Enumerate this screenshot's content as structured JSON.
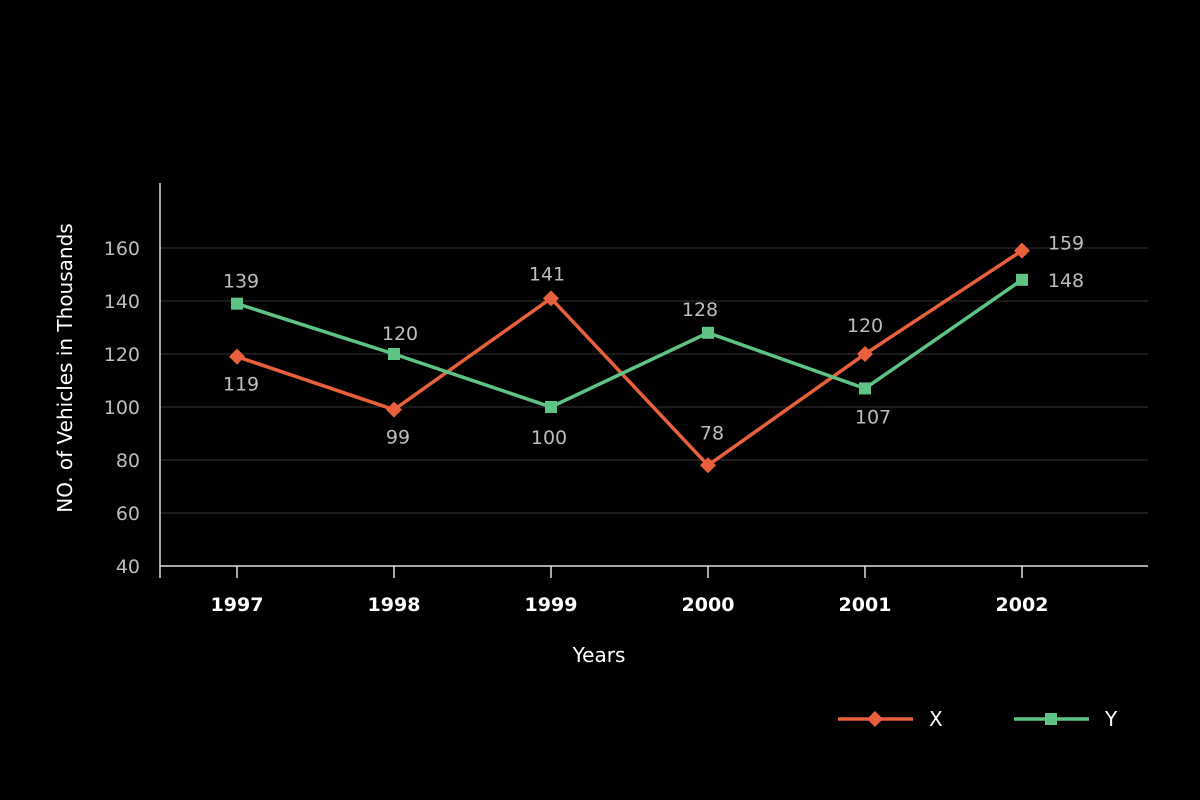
{
  "chart_data": {
    "type": "line",
    "title": "",
    "xlabel": "Years",
    "ylabel": "NO. of Vehicles in Thousands",
    "categories": [
      "1997",
      "1998",
      "1999",
      "2000",
      "2001",
      "2002"
    ],
    "y_ticks": [
      "40",
      "60",
      "80",
      "100",
      "120",
      "140",
      "160"
    ],
    "ylim": [
      40,
      170
    ],
    "grid": true,
    "legend_position": "bottom-right",
    "series": [
      {
        "name": "X",
        "values": [
          119,
          99,
          141,
          78,
          120,
          159
        ],
        "color": "#e8603c",
        "marker": "diamond"
      },
      {
        "name": "Y",
        "values": [
          139,
          120,
          100,
          128,
          107,
          148
        ],
        "color": "#5ec486",
        "marker": "square"
      }
    ]
  }
}
